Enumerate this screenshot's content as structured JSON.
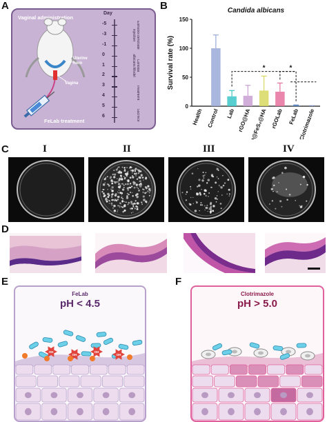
{
  "panels": {
    "A": "A",
    "B": "B",
    "C": "C",
    "D": "D",
    "E": "E",
    "F": "F"
  },
  "panelA": {
    "title": "Vaginal administration",
    "day_label": "Day",
    "timeline_ticks": [
      "-5",
      "-3",
      "-1",
      "0",
      "1",
      "2",
      "3",
      "4",
      "5",
      "6"
    ],
    "phases": [
      "Estradiol benzoate injection",
      "Candida albicans Model",
      "Treatment",
      "Sacrifice"
    ],
    "uterine_horn": "Uterine horn",
    "vagina": "Vagina",
    "treatment_label": "FeLab treatment",
    "colors": {
      "bg": "#c9b3d4",
      "border": "#7b5c8e",
      "text": "#ffffff"
    }
  },
  "chart_data": {
    "type": "bar",
    "title": "Candida albicans",
    "ylabel": "Survival rate (%)",
    "xlabel": "",
    "ylim": [
      0,
      150
    ],
    "yticks": [
      "0",
      "50",
      "100",
      "150"
    ],
    "categories": [
      "Health",
      "Control",
      "Lab",
      "rGO@HA",
      "rGO@FeS₂@HA",
      "rGOLab",
      "FeLab",
      "Clotrimazole"
    ],
    "values": [
      0,
      100,
      17,
      18,
      27,
      25,
      1,
      0
    ],
    "errors": [
      0,
      23,
      10,
      18,
      25,
      15,
      1,
      1
    ],
    "colors": [
      "#9aa9d8",
      "#9aa9d8",
      "#3cc6c8",
      "#c8a0d2",
      "#d8d860",
      "#e6709c",
      "#4a7cc0",
      "#9aa9d8"
    ],
    "significance": [
      "*",
      "*"
    ]
  },
  "panelC": {
    "labels": [
      "I",
      "II",
      "III",
      "IV"
    ]
  },
  "panelE": {
    "name": "FeLab",
    "ph": "pH < 4.5",
    "border": "#b8a0cc",
    "ros_label": "OH"
  },
  "panelF": {
    "name": "Clotrimazole",
    "ph": "pH > 5.0",
    "border": "#e0609c"
  }
}
